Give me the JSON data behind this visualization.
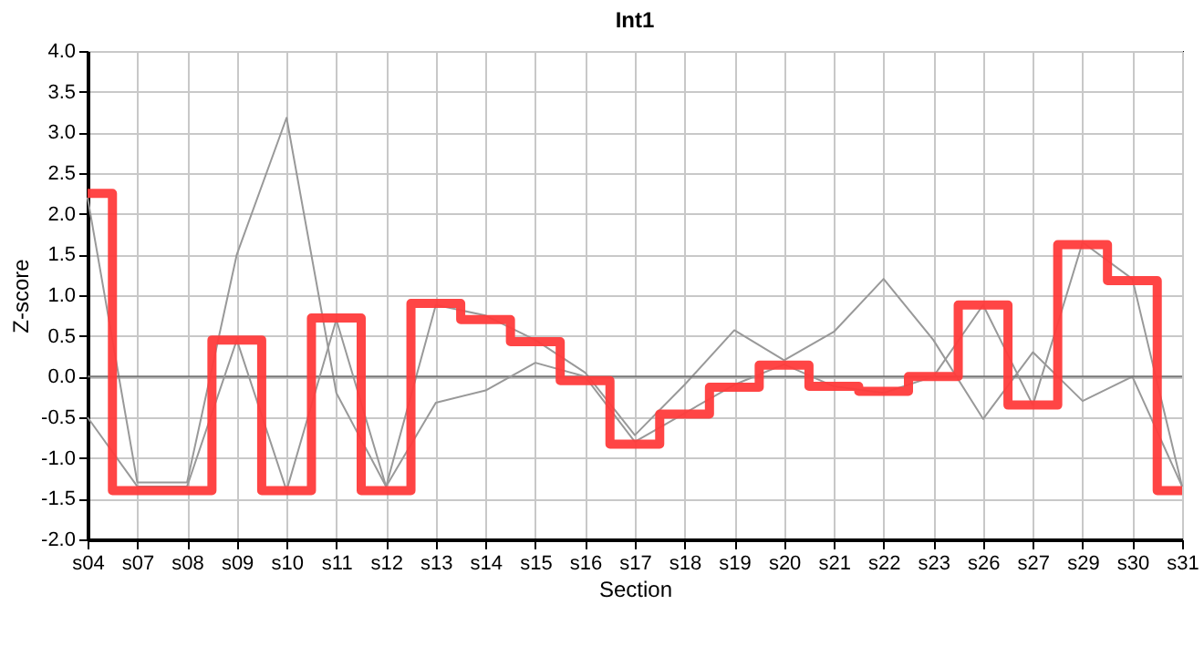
{
  "chart_data": {
    "type": "line",
    "title": "Int1",
    "xlabel": "Section",
    "ylabel": "Z-score",
    "categories": [
      "s04",
      "s07",
      "s08",
      "s09",
      "s10",
      "s11",
      "s12",
      "s13",
      "s14",
      "s15",
      "s16",
      "s17",
      "s18",
      "s19",
      "s20",
      "s21",
      "s22",
      "s23",
      "s26",
      "s27",
      "s29",
      "s30",
      "s31"
    ],
    "series": [
      {
        "type": "line",
        "color": "#999999",
        "values": [
          2.2,
          -1.3,
          -1.3,
          1.5,
          3.18,
          -0.2,
          -1.35,
          0.88,
          0.75,
          0.45,
          0.05,
          -0.72,
          -0.1,
          0.57,
          0.2,
          0.55,
          1.2,
          0.45,
          -0.52,
          0.3,
          -0.3,
          0.0,
          -1.35
        ]
      },
      {
        "type": "line",
        "color": "#999999",
        "values": [
          -0.5,
          -1.35,
          -1.35,
          0.45,
          -1.4,
          0.7,
          -1.35,
          -0.32,
          -0.17,
          0.17,
          0.0,
          -0.8,
          -0.45,
          -0.1,
          0.15,
          -0.12,
          -0.2,
          0.0,
          0.88,
          -0.35,
          1.65,
          1.2,
          -1.35
        ]
      },
      {
        "type": "step",
        "color": "#ff3b3b",
        "values": [
          2.25,
          -1.4,
          -1.4,
          0.45,
          -1.4,
          0.72,
          -1.4,
          0.9,
          0.7,
          0.43,
          -0.05,
          -0.83,
          -0.46,
          -0.13,
          0.14,
          -0.12,
          -0.18,
          0.0,
          0.88,
          -0.35,
          1.62,
          1.18,
          -1.4
        ]
      }
    ],
    "ylim": [
      -2,
      4
    ],
    "yticks": [
      {
        "value": -2,
        "label": "-2.0"
      },
      {
        "value": -1.5,
        "label": "-1.5"
      },
      {
        "value": -1,
        "label": "-1.0"
      },
      {
        "value": -0.5,
        "label": "-0.5"
      },
      {
        "value": 0,
        "label": "0.0"
      },
      {
        "value": 0.5,
        "label": "0.5"
      },
      {
        "value": 1,
        "label": "1.0"
      },
      {
        "value": 1.5,
        "label": "1.5"
      },
      {
        "value": 2,
        "label": "2.0"
      },
      {
        "value": 2.5,
        "label": "2.5"
      },
      {
        "value": 3,
        "label": "3.0"
      },
      {
        "value": 3.5,
        "label": "3.5"
      },
      {
        "value": 4,
        "label": "4.0"
      }
    ],
    "ref_lines": [
      {
        "axis": "y",
        "value": 0,
        "color": "#777777"
      }
    ],
    "grid": true
  }
}
